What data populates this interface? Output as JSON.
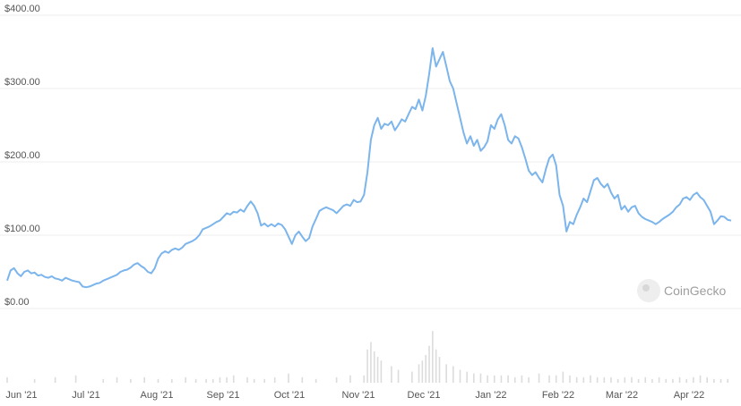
{
  "chart_data": {
    "type": "line",
    "watermark": "CoinGecko",
    "y_ticks": [
      "$400.00",
      "$300.00",
      "$200.00",
      "$100.00",
      "$0.00"
    ],
    "x_ticks": [
      "Jun '21",
      "Jul '21",
      "Aug '21",
      "Sep '21",
      "Oct '21",
      "Nov '21",
      "Dec '21",
      "Jan '22",
      "Feb '22",
      "Mar '22",
      "Apr '22"
    ],
    "ylim": [
      0,
      400
    ],
    "grid": true,
    "line_color": "#7cb5ec",
    "volume_color": "#dcdcdc",
    "series": [
      {
        "values": [
          [
            0.0,
            38
          ],
          [
            1,
            52
          ],
          [
            2,
            55
          ],
          [
            3,
            48
          ],
          [
            4,
            44
          ],
          [
            5,
            50
          ],
          [
            6,
            52
          ],
          [
            7,
            48
          ],
          [
            8,
            49
          ],
          [
            9,
            45
          ],
          [
            10,
            46
          ],
          [
            11,
            43
          ],
          [
            12,
            42
          ],
          [
            13,
            44
          ],
          [
            14,
            41
          ],
          [
            15,
            40
          ],
          [
            16,
            38
          ],
          [
            17,
            42
          ],
          [
            18,
            40
          ],
          [
            19,
            38
          ],
          [
            20,
            37
          ],
          [
            21,
            36
          ],
          [
            22,
            30
          ],
          [
            23,
            29
          ],
          [
            24,
            30
          ],
          [
            25,
            32
          ],
          [
            26,
            34
          ],
          [
            27,
            35
          ],
          [
            28,
            38
          ],
          [
            29,
            40
          ],
          [
            30,
            42
          ],
          [
            31,
            44
          ],
          [
            32,
            46
          ],
          [
            33,
            50
          ],
          [
            34,
            52
          ],
          [
            35,
            53
          ],
          [
            36,
            56
          ],
          [
            37,
            60
          ],
          [
            38,
            62
          ],
          [
            39,
            58
          ],
          [
            40,
            55
          ],
          [
            41,
            50
          ],
          [
            42,
            48
          ],
          [
            43,
            55
          ],
          [
            44,
            68
          ],
          [
            45,
            75
          ],
          [
            46,
            78
          ],
          [
            47,
            76
          ],
          [
            48,
            80
          ],
          [
            49,
            82
          ],
          [
            50,
            80
          ],
          [
            51,
            83
          ],
          [
            52,
            88
          ],
          [
            53,
            90
          ],
          [
            54,
            92
          ],
          [
            55,
            95
          ],
          [
            56,
            100
          ],
          [
            57,
            108
          ],
          [
            58,
            110
          ],
          [
            59,
            112
          ],
          [
            60,
            115
          ],
          [
            61,
            118
          ],
          [
            62,
            120
          ],
          [
            63,
            125
          ],
          [
            64,
            130
          ],
          [
            65,
            128
          ],
          [
            66,
            132
          ],
          [
            67,
            131
          ],
          [
            68,
            135
          ],
          [
            69,
            132
          ],
          [
            70,
            140
          ],
          [
            71,
            146
          ],
          [
            72,
            140
          ],
          [
            73,
            130
          ],
          [
            74,
            113
          ],
          [
            75,
            116
          ],
          [
            76,
            112
          ],
          [
            77,
            115
          ],
          [
            78,
            112
          ],
          [
            79,
            116
          ],
          [
            80,
            114
          ],
          [
            81,
            108
          ],
          [
            82,
            98
          ],
          [
            83,
            88
          ],
          [
            84,
            100
          ],
          [
            85,
            105
          ],
          [
            86,
            98
          ],
          [
            87,
            92
          ],
          [
            88,
            96
          ],
          [
            89,
            112
          ],
          [
            90,
            122
          ],
          [
            91,
            133
          ],
          [
            92,
            136
          ],
          [
            93,
            138
          ],
          [
            94,
            136
          ],
          [
            95,
            134
          ],
          [
            96,
            130
          ],
          [
            97,
            135
          ],
          [
            98,
            140
          ],
          [
            99,
            142
          ],
          [
            100,
            140
          ],
          [
            101,
            148
          ],
          [
            102,
            145
          ],
          [
            103,
            146
          ],
          [
            104,
            155
          ],
          [
            105,
            186
          ],
          [
            106,
            230
          ],
          [
            107,
            250
          ],
          [
            108,
            260
          ],
          [
            109,
            245
          ],
          [
            110,
            252
          ],
          [
            111,
            250
          ],
          [
            112,
            255
          ],
          [
            113,
            243
          ],
          [
            114,
            250
          ],
          [
            115,
            258
          ],
          [
            116,
            255
          ],
          [
            117,
            265
          ],
          [
            118,
            275
          ],
          [
            119,
            272
          ],
          [
            120,
            285
          ],
          [
            121,
            270
          ],
          [
            122,
            290
          ],
          [
            123,
            320
          ],
          [
            124,
            355
          ],
          [
            125,
            330
          ],
          [
            126,
            340
          ],
          [
            127,
            350
          ],
          [
            128,
            330
          ],
          [
            129,
            310
          ],
          [
            130,
            300
          ],
          [
            131,
            280
          ],
          [
            132,
            260
          ],
          [
            133,
            240
          ],
          [
            134,
            225
          ],
          [
            135,
            235
          ],
          [
            136,
            222
          ],
          [
            137,
            230
          ],
          [
            138,
            215
          ],
          [
            139,
            220
          ],
          [
            140,
            228
          ],
          [
            141,
            250
          ],
          [
            142,
            245
          ],
          [
            143,
            258
          ],
          [
            144,
            265
          ],
          [
            145,
            250
          ],
          [
            146,
            230
          ],
          [
            147,
            225
          ],
          [
            148,
            235
          ],
          [
            149,
            232
          ],
          [
            150,
            220
          ],
          [
            151,
            205
          ],
          [
            152,
            188
          ],
          [
            153,
            182
          ],
          [
            154,
            186
          ],
          [
            155,
            178
          ],
          [
            156,
            172
          ],
          [
            157,
            190
          ],
          [
            158,
            205
          ],
          [
            159,
            210
          ],
          [
            160,
            195
          ],
          [
            161,
            155
          ],
          [
            162,
            140
          ],
          [
            163,
            105
          ],
          [
            164,
            118
          ],
          [
            165,
            115
          ],
          [
            166,
            128
          ],
          [
            167,
            138
          ],
          [
            168,
            150
          ],
          [
            169,
            145
          ],
          [
            170,
            160
          ],
          [
            171,
            175
          ],
          [
            172,
            178
          ],
          [
            173,
            170
          ],
          [
            174,
            165
          ],
          [
            175,
            170
          ],
          [
            176,
            158
          ],
          [
            177,
            150
          ],
          [
            178,
            155
          ],
          [
            179,
            135
          ],
          [
            180,
            140
          ],
          [
            181,
            132
          ],
          [
            182,
            138
          ],
          [
            183,
            140
          ],
          [
            184,
            130
          ],
          [
            185,
            125
          ],
          [
            186,
            122
          ],
          [
            187,
            120
          ],
          [
            188,
            118
          ],
          [
            189,
            115
          ],
          [
            190,
            118
          ],
          [
            191,
            122
          ],
          [
            192,
            125
          ],
          [
            193,
            128
          ],
          [
            194,
            132
          ],
          [
            195,
            138
          ],
          [
            196,
            142
          ],
          [
            197,
            150
          ],
          [
            198,
            152
          ],
          [
            199,
            148
          ],
          [
            200,
            155
          ],
          [
            201,
            158
          ],
          [
            202,
            152
          ],
          [
            203,
            148
          ],
          [
            204,
            140
          ],
          [
            205,
            132
          ],
          [
            206,
            115
          ],
          [
            207,
            120
          ],
          [
            208,
            126
          ],
          [
            209,
            125
          ],
          [
            210,
            121
          ],
          [
            211,
            120
          ]
        ]
      }
    ],
    "volume": [
      [
        0,
        3
      ],
      [
        8,
        2
      ],
      [
        14,
        3
      ],
      [
        20,
        4
      ],
      [
        28,
        2
      ],
      [
        32,
        3
      ],
      [
        36,
        2
      ],
      [
        40,
        3
      ],
      [
        44,
        2
      ],
      [
        48,
        2
      ],
      [
        52,
        3
      ],
      [
        55,
        2
      ],
      [
        58,
        2
      ],
      [
        60,
        2
      ],
      [
        62,
        3
      ],
      [
        64,
        3
      ],
      [
        66,
        4
      ],
      [
        70,
        3
      ],
      [
        72,
        2
      ],
      [
        75,
        2
      ],
      [
        78,
        3
      ],
      [
        82,
        5
      ],
      [
        86,
        3
      ],
      [
        90,
        2
      ],
      [
        96,
        3
      ],
      [
        100,
        4
      ],
      [
        104,
        4
      ],
      [
        105,
        18
      ],
      [
        106,
        22
      ],
      [
        107,
        17
      ],
      [
        108,
        14
      ],
      [
        109,
        12
      ],
      [
        112,
        9
      ],
      [
        114,
        7
      ],
      [
        118,
        6
      ],
      [
        120,
        10
      ],
      [
        121,
        12
      ],
      [
        122,
        15
      ],
      [
        123,
        20
      ],
      [
        124,
        28
      ],
      [
        125,
        18
      ],
      [
        126,
        14
      ],
      [
        128,
        10
      ],
      [
        130,
        9
      ],
      [
        132,
        7
      ],
      [
        134,
        6
      ],
      [
        136,
        5
      ],
      [
        138,
        5
      ],
      [
        140,
        4
      ],
      [
        142,
        4
      ],
      [
        144,
        4
      ],
      [
        146,
        4
      ],
      [
        148,
        3
      ],
      [
        150,
        4
      ],
      [
        152,
        3
      ],
      [
        155,
        5
      ],
      [
        158,
        4
      ],
      [
        160,
        4
      ],
      [
        162,
        6
      ],
      [
        164,
        4
      ],
      [
        166,
        3
      ],
      [
        168,
        3
      ],
      [
        170,
        4
      ],
      [
        172,
        3
      ],
      [
        174,
        3
      ],
      [
        176,
        3
      ],
      [
        178,
        2
      ],
      [
        180,
        3
      ],
      [
        182,
        3
      ],
      [
        184,
        2
      ],
      [
        186,
        3
      ],
      [
        188,
        2
      ],
      [
        190,
        3
      ],
      [
        192,
        2
      ],
      [
        194,
        2
      ],
      [
        196,
        3
      ],
      [
        198,
        2
      ],
      [
        200,
        3
      ],
      [
        202,
        4
      ],
      [
        204,
        3
      ],
      [
        206,
        2
      ],
      [
        208,
        2
      ],
      [
        210,
        2
      ]
    ]
  }
}
